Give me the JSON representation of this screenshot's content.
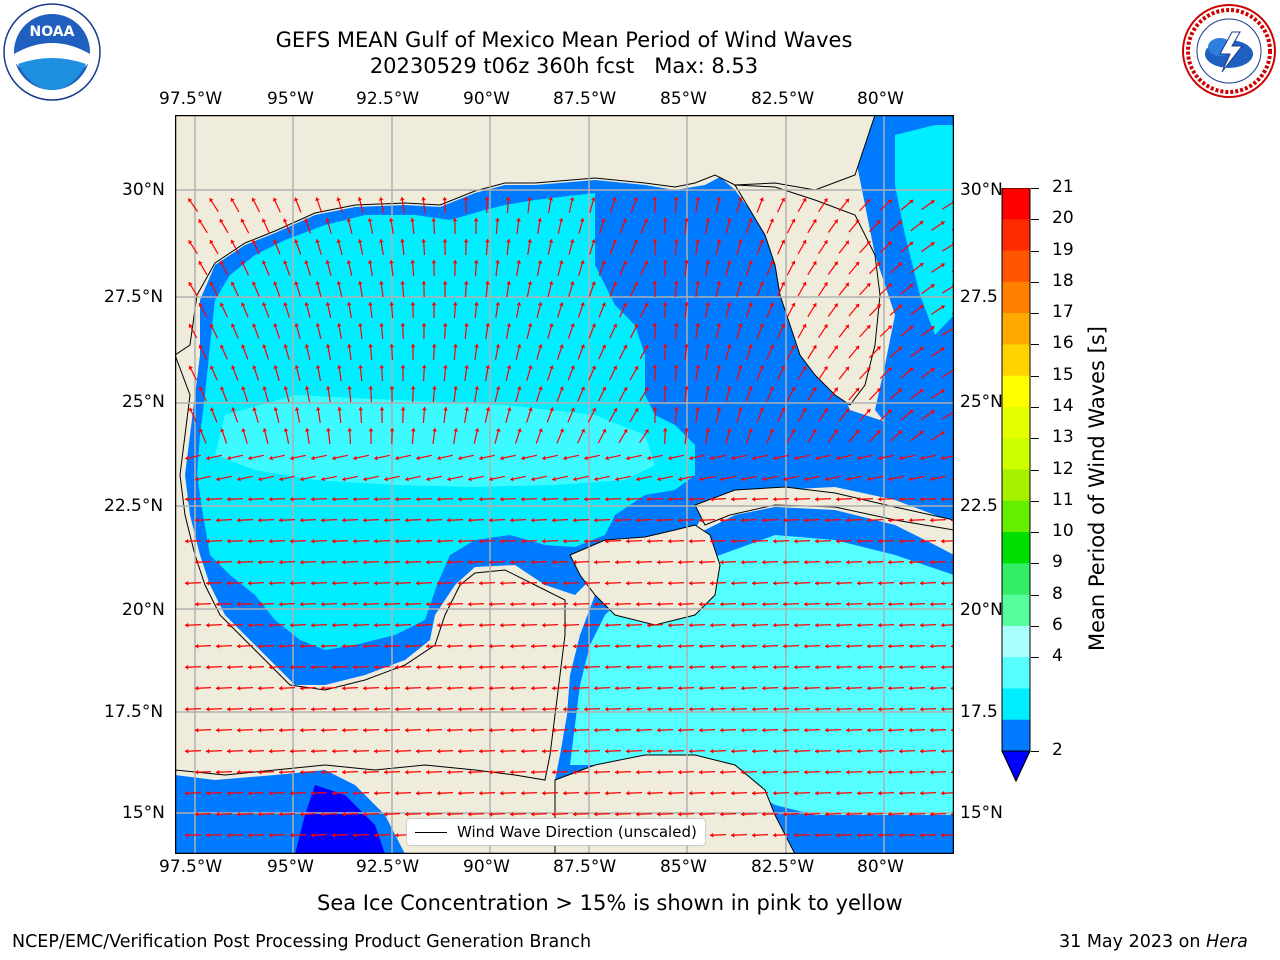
{
  "title": {
    "line1": "GEFS MEAN Gulf of Mexico Mean Period of Wind Waves",
    "line2": "20230529 t06z 360h fcst   Max: 8.53"
  },
  "logos": {
    "noaa": {
      "text": "NOAA",
      "ring_text": "NATIONAL OCEANIC AND ATMOSPHERIC ADMINISTRATION · U.S. DEPARTMENT OF COMMERCE",
      "icon": "noaa-logo"
    },
    "nws": {
      "ring_text": "NATIONAL WEATHER SERVICE",
      "icon": "nws-logo"
    }
  },
  "map": {
    "lon_ticks": [
      "97.5°W",
      "95°W",
      "92.5°W",
      "90°W",
      "87.5°W",
      "85°W",
      "82.5°W",
      "80°W"
    ],
    "lat_ticks_left": [
      "30°N",
      "27.5°N",
      "25°N",
      "22.5°N",
      "20°N",
      "17.5°N",
      "15°N"
    ],
    "lat_ticks_right": [
      "30°N",
      "27.5",
      "25°N",
      "22.5",
      "20°N",
      "17.5",
      "15°N"
    ],
    "land_color": "#efecdc",
    "grid_color": "#b0b0b0",
    "arrow_color": "#ff0000"
  },
  "legend": {
    "label": "Wind Wave Direction (unscaled)"
  },
  "colorbar": {
    "label": "Mean Period of Wind Waves [s]",
    "ticks": [
      "21",
      "20",
      "19",
      "18",
      "17",
      "16",
      "15",
      "14",
      "13",
      "12",
      "11",
      "10",
      "9",
      "8",
      "6",
      "4",
      "2"
    ],
    "bands_top_to_bottom": [
      "#ff0000",
      "#ff2a00",
      "#ff5500",
      "#ff8000",
      "#ffaa00",
      "#ffd200",
      "#ffff00",
      "#e6ff00",
      "#ccff00",
      "#a6f000",
      "#66ee00",
      "#00dd00",
      "#33ee66",
      "#55ff99",
      "#aaffff",
      "#55ffff",
      "#00eeff",
      "#007bff"
    ],
    "extend_color": "#0000ff"
  },
  "chart_data": {
    "type": "heatmap",
    "title": "GEFS MEAN Gulf of Mexico Mean Period of Wind Waves",
    "subtitle": "20230529 t06z 360h fcst   Max: 8.53",
    "variable": "Mean Period of Wind Waves [s]",
    "max_value": 8.53,
    "lon_range": [
      -98,
      -78
    ],
    "lat_range": [
      14,
      32
    ],
    "colorbar_levels": [
      2,
      4,
      6,
      8,
      9,
      10,
      11,
      12,
      13,
      14,
      15,
      16,
      17,
      18,
      19,
      20,
      21
    ],
    "vector_field": "Wind Wave Direction (unscaled)",
    "grid": true
  },
  "caption": "Sea Ice Concentration > 15% is shown in pink to yellow",
  "footer": {
    "left": "NCEP/EMC/Verification Post Processing Product Generation Branch",
    "date": "31 May 2023 on ",
    "host": "Hera"
  }
}
